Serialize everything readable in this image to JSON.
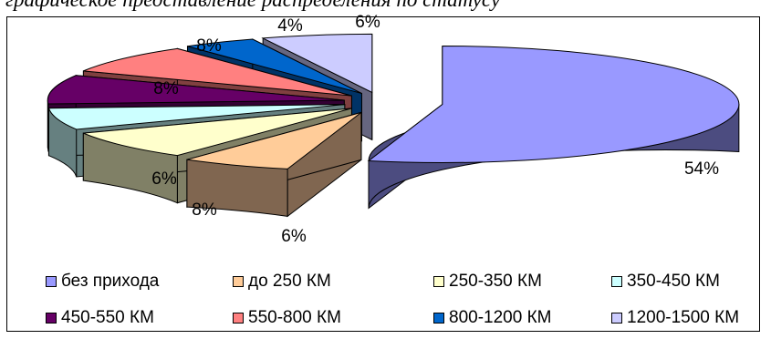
{
  "caption": "графическое представление распределения по статусу",
  "chart_data": {
    "type": "pie",
    "three_d": true,
    "exploded": true,
    "legend_position": "bottom",
    "categories": [
      "без прихода",
      "до 250 КМ",
      "250-350 КМ",
      "350-450 КМ",
      "450-550 КМ",
      "550-800 КМ",
      "800-1200 КМ",
      "1200-1500 КМ"
    ],
    "values": [
      54,
      6,
      8,
      6,
      8,
      8,
      4,
      6
    ],
    "data_labels": [
      "54%",
      "6%",
      "8%",
      "6%",
      "8%",
      "8%",
      "4%",
      "6%"
    ],
    "colors": [
      "#9999FF",
      "#FFCC99",
      "#FFFFCC",
      "#CCFFFF",
      "#660066",
      "#FF8080",
      "#0066CC",
      "#CCCCFF"
    ],
    "side_colors": [
      "#4C4C80",
      "#806650",
      "#808066",
      "#668080",
      "#330033",
      "#804040",
      "#003366",
      "#666680"
    ]
  }
}
